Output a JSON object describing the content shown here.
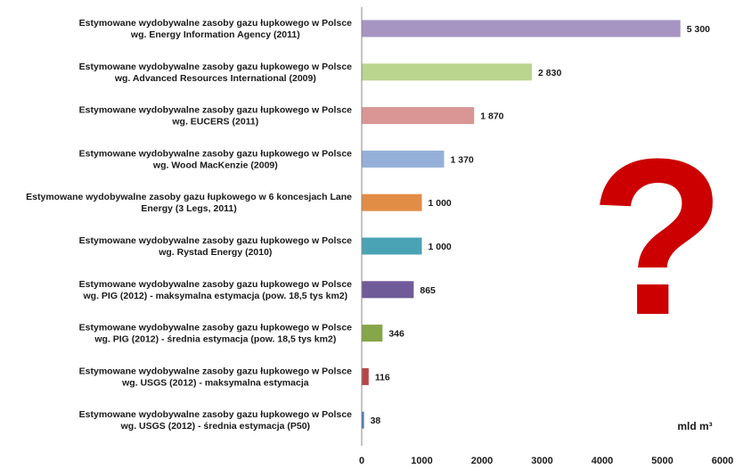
{
  "chart_data": {
    "type": "bar",
    "orientation": "horizontal",
    "categories": [
      [
        "Estymowane wydobywalne zasoby gazu łupkowego w Polsce",
        "wg. Energy Information Agency (2011)"
      ],
      [
        "Estymowane wydobywalne zasoby gazu łupkowego w Polsce",
        "wg. Advanced Resources International (2009)"
      ],
      [
        "Estymowane wydobywalne zasoby gazu łupkowego w Polsce",
        "wg. EUCERS (2011)"
      ],
      [
        "Estymowane wydobywalne zasoby gazu łupkowego w Polsce",
        "wg. Wood MacKenzie (2009)"
      ],
      [
        "Estymowane wydobywalne zasoby gazu łupkowego w 6 koncesjach Lane",
        "Energy (3 Legs, 2011)"
      ],
      [
        "Estymowane wydobywalne zasoby gazu łupkowego w Polsce",
        "wg. Rystad Energy (2010)"
      ],
      [
        "Estymowane wydobywalne zasoby gazu łupkowego w Polsce",
        "wg. PIG (2012) - maksymalna estymacja (pow. 18,5 tys km2)"
      ],
      [
        "Estymowane wydobywalne zasoby gazu łupkowego w Polsce",
        "wg. PIG (2012) - średnia estymacja (pow. 18,5 tys km2)"
      ],
      [
        "Estymowane wydobywalne zasoby gazu łupkowego w Polsce",
        "wg. USGS (2012) - maksymalna estymacja"
      ],
      [
        "Estymowane wydobywalne zasoby gazu łupkowego w Polsce",
        "wg. USGS (2012) - średnia estymacja (P50)"
      ]
    ],
    "values": [
      5300,
      2830,
      1870,
      1370,
      1000,
      1000,
      865,
      346,
      116,
      38
    ],
    "value_labels": [
      "5 300",
      "2 830",
      "1 870",
      "1 370",
      "1 000",
      "1 000",
      "865",
      "346",
      "116",
      "38"
    ],
    "colors": [
      "#a695c2",
      "#b9d58e",
      "#d99694",
      "#95b0d8",
      "#e28d45",
      "#4aa3b5",
      "#6f5b98",
      "#86a64a",
      "#b94646",
      "#4a7ab8"
    ],
    "xlim": [
      0,
      6000
    ],
    "x_ticks": [
      0,
      1000,
      2000,
      3000,
      4000,
      5000,
      6000
    ],
    "unit_label": "mld m³",
    "annotation": "?",
    "annotation_color": "#cc0000",
    "grid": false,
    "title": "",
    "xlabel": "",
    "ylabel": ""
  }
}
